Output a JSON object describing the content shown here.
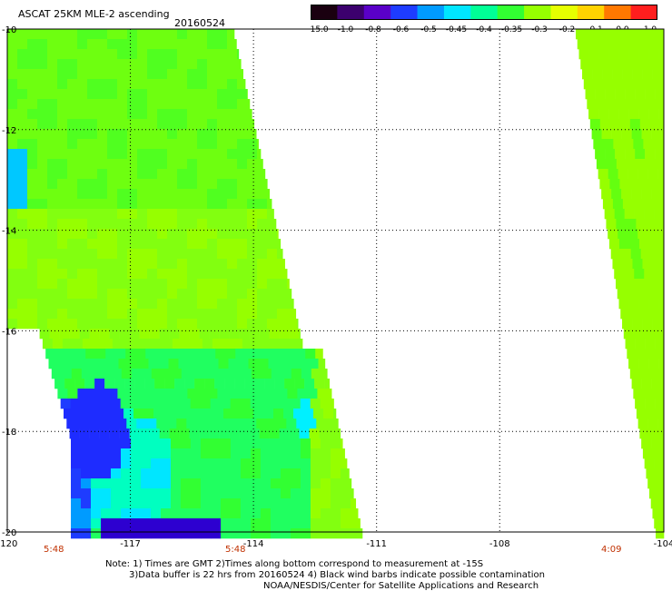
{
  "header": {
    "title": "ASCAT 25KM MLE-2 ascending",
    "date": "20160524"
  },
  "colorbar": {
    "labels": [
      "-15.0",
      "-1.0",
      "-0.8",
      "-0.6",
      "-0.5",
      "-0.45",
      "-0.4",
      "-0.35",
      "-0.3",
      "-0.2",
      "-0.1",
      "0.0",
      "1.0"
    ],
    "colors": [
      "#1a0010",
      "#3c006e",
      "#5a00c8",
      "#1e3cff",
      "#009bff",
      "#00e6ff",
      "#00ff96",
      "#32ff32",
      "#96ff00",
      "#e6ff00",
      "#ffd200",
      "#ff7800",
      "#ff1e1e"
    ]
  },
  "map": {
    "lon_range": [
      -120,
      -104
    ],
    "lat_range": [
      -20,
      -10
    ],
    "lon_ticks": [
      "-120",
      "-117",
      "-114",
      "-111",
      "-108",
      "-104"
    ],
    "lat_ticks": [
      "-10",
      "-12",
      "-14",
      "-16",
      "-18",
      "-20"
    ],
    "pass_times": [
      "5:48",
      "5:48",
      "4:09"
    ]
  },
  "footer": {
    "line1": "Note: 1) Times are GMT 2)Times along bottom correspond to measurement at -15S",
    "line2": "3)Data buffer is 22 hrs from 20160524 4) Black wind barbs indicate possible contamination",
    "line3": "NOAA/NESDIS/Center for Satellite Applications and Research"
  }
}
